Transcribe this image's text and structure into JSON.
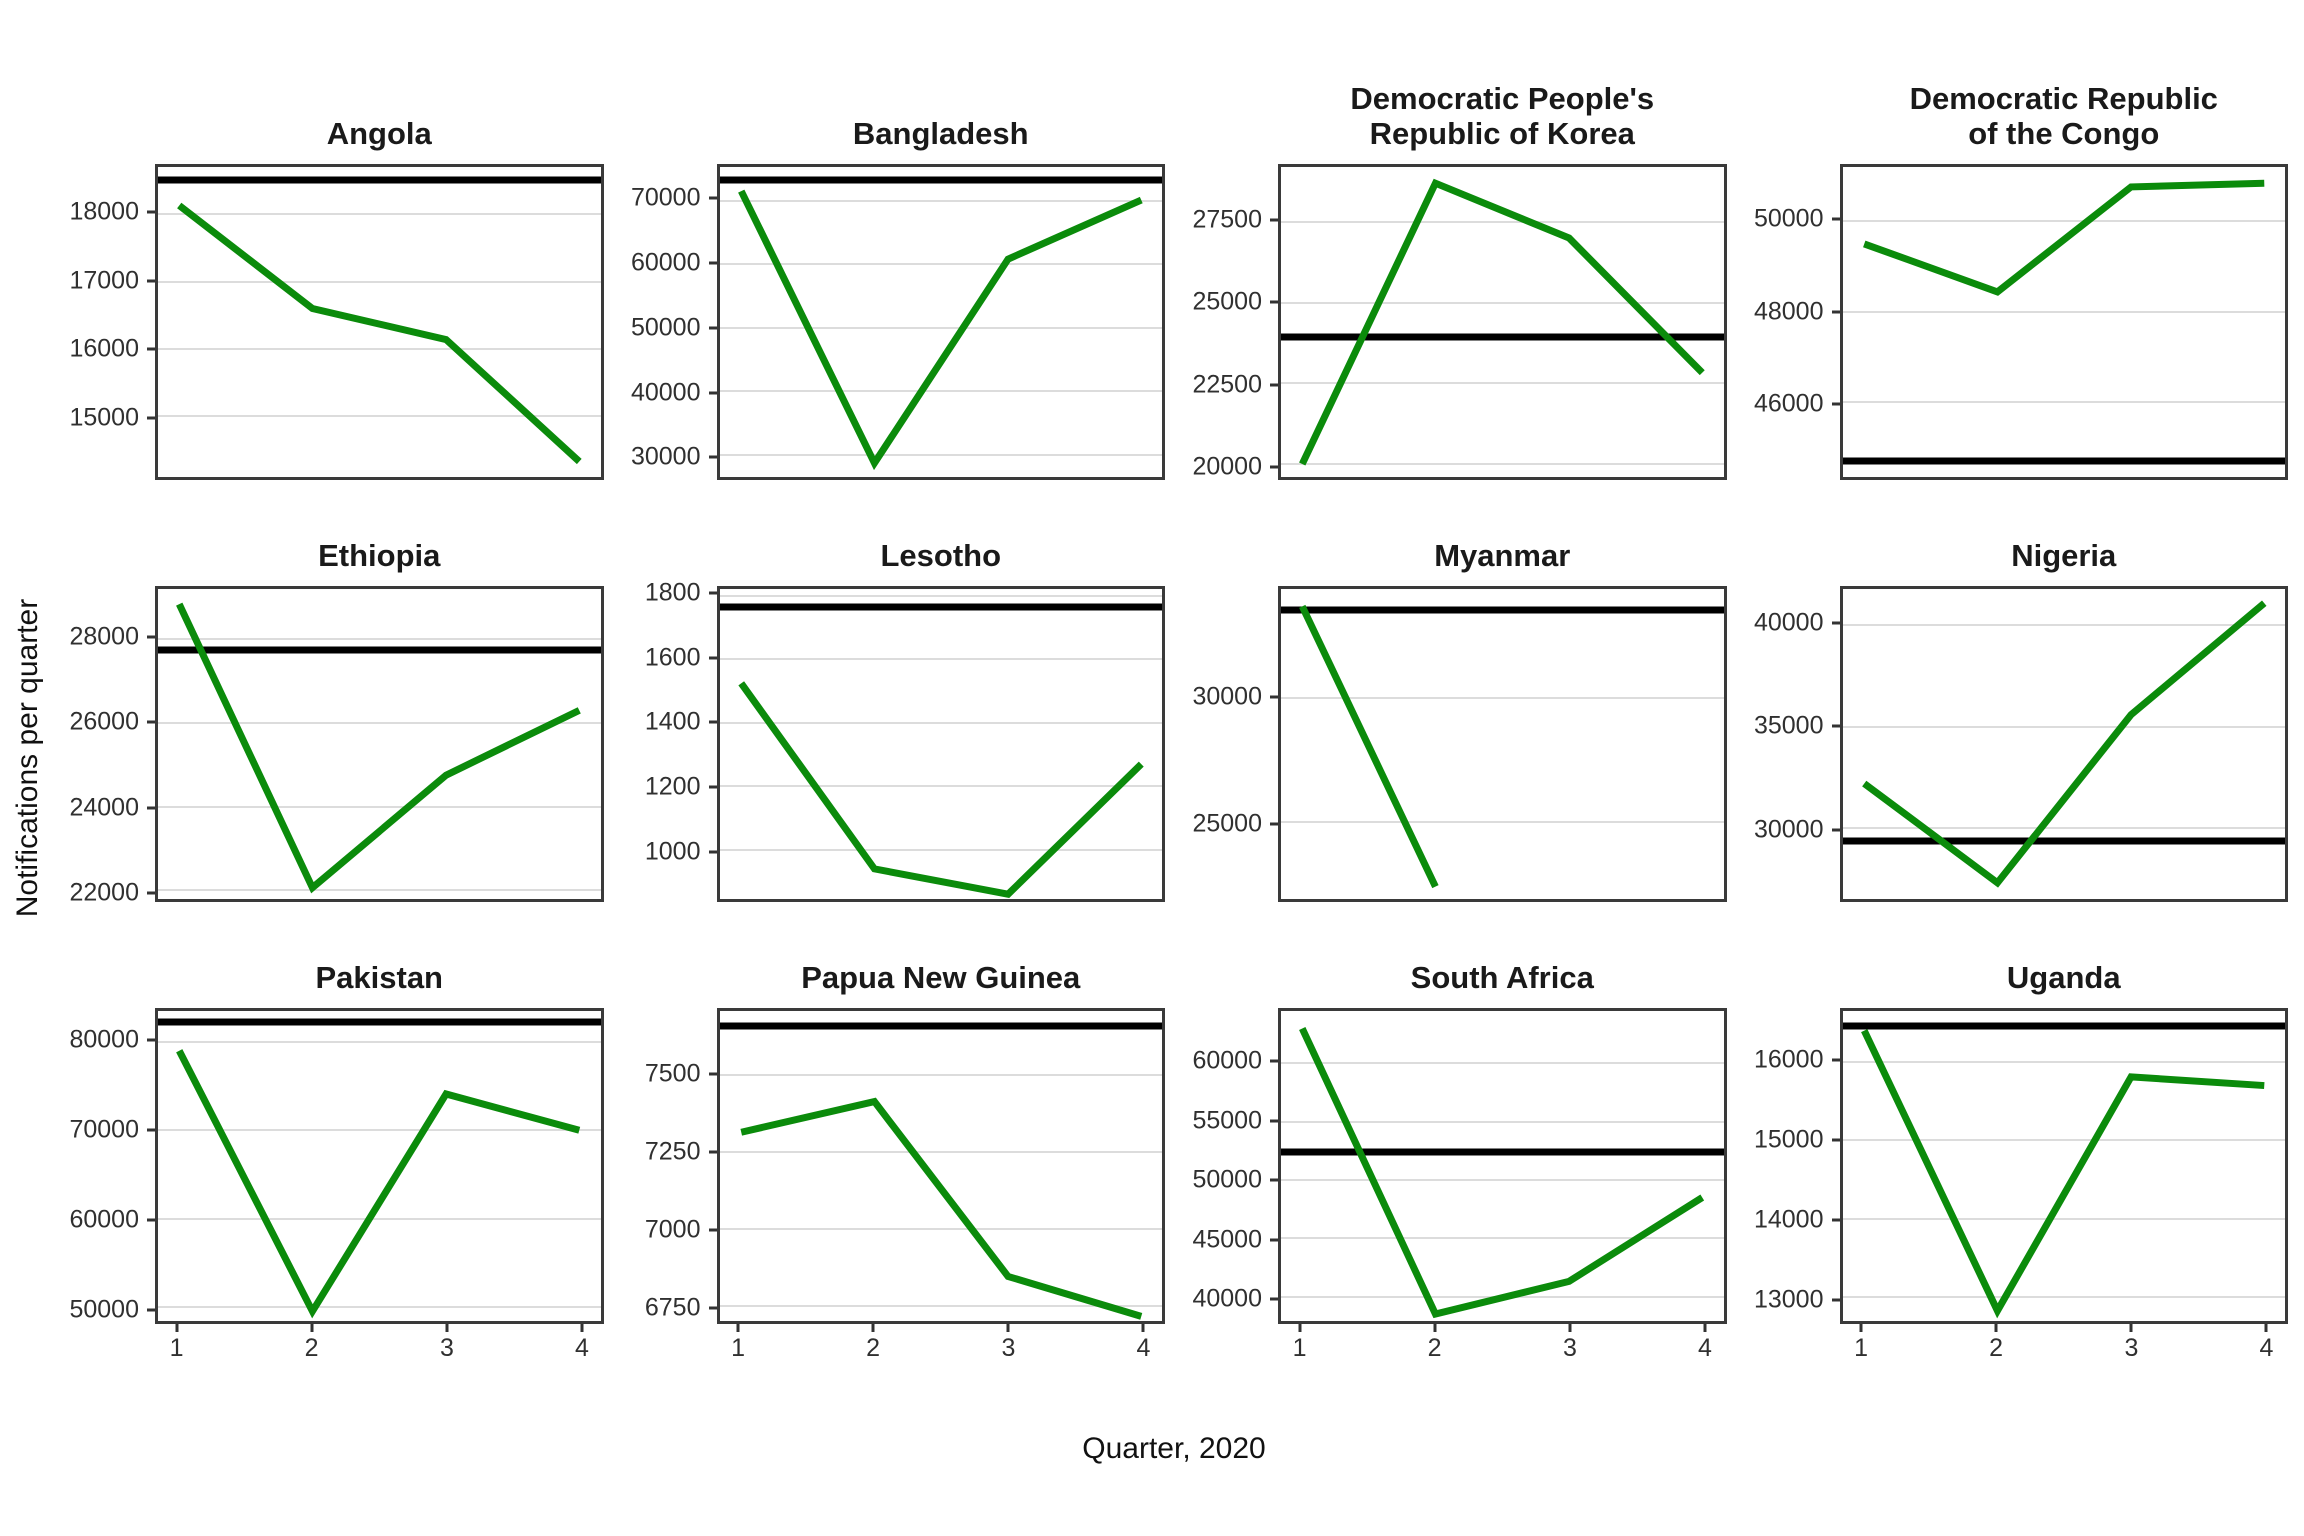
{
  "figure": {
    "x_axis_label": "Quarter, 2020",
    "y_axis_label": "Notifications per quarter"
  },
  "chart_data": {
    "type": "line",
    "title": "",
    "x_label": "Quarter, 2020",
    "y_label": "Notifications per quarter",
    "x": [
      1,
      2,
      3,
      4
    ],
    "x_ticks": [
      "1",
      "2",
      "3",
      "4"
    ],
    "line_color": "#0b8b0b",
    "reference_line_color": "#000000",
    "grid": "major-horizontal",
    "legend_position": "none",
    "facets": [
      {
        "title": "Angola",
        "title_lines": [
          "Angola"
        ],
        "values": [
          18130,
          16600,
          16140,
          14330
        ],
        "reference_line": 18500,
        "y_ticks": [
          15000,
          16000,
          17000,
          18000
        ],
        "ylim": [
          14100,
          18700
        ]
      },
      {
        "title": "Bangladesh",
        "title_lines": [
          "Bangladesh"
        ],
        "values": [
          71500,
          28700,
          60800,
          70100
        ],
        "reference_line": 73300,
        "y_ticks": [
          30000,
          40000,
          50000,
          60000,
          70000
        ],
        "ylim": [
          26500,
          75300
        ]
      },
      {
        "title": "Democratic People's Republic of Korea",
        "title_lines": [
          "Democratic People's",
          "Republic of Korea"
        ],
        "values": [
          20000,
          28700,
          27000,
          22830
        ],
        "reference_line": 23950,
        "y_ticks": [
          20000,
          22500,
          25000,
          27500
        ],
        "ylim": [
          19600,
          29200
        ]
      },
      {
        "title": "Democratic Republic of the Congo",
        "title_lines": [
          "Democratic Republic",
          "of the Congo"
        ],
        "values": [
          49500,
          48440,
          50760,
          50840
        ],
        "reference_line": 44700,
        "y_ticks": [
          46000,
          48000,
          50000
        ],
        "ylim": [
          44350,
          51200
        ]
      },
      {
        "title": "Ethiopia",
        "title_lines": [
          "Ethiopia"
        ],
        "values": [
          28840,
          22060,
          24750,
          26300
        ],
        "reference_line": 27730,
        "y_ticks": [
          22000,
          24000,
          26000,
          28000
        ],
        "ylim": [
          21790,
          29200
        ]
      },
      {
        "title": "Lesotho",
        "title_lines": [
          "Lesotho"
        ],
        "values": [
          1525,
          940,
          860,
          1270
        ],
        "reference_line": 1766,
        "y_ticks": [
          1000,
          1200,
          1400,
          1600,
          1800
        ],
        "ylim": [
          845,
          1822
        ]
      },
      {
        "title": "Myanmar",
        "title_lines": [
          "Myanmar"
        ],
        "values": [
          33700,
          22400,
          null,
          null
        ],
        "reference_line": 33570,
        "y_ticks": [
          25000,
          30000
        ],
        "ylim": [
          21900,
          34400
        ]
      },
      {
        "title": "Nigeria",
        "title_lines": [
          "Nigeria"
        ],
        "values": [
          32200,
          27300,
          35600,
          41100
        ],
        "reference_line": 29350,
        "y_ticks": [
          30000,
          35000,
          40000
        ],
        "ylim": [
          26500,
          41800
        ]
      },
      {
        "title": "Pakistan",
        "title_lines": [
          "Pakistan"
        ],
        "values": [
          79000,
          49500,
          74100,
          70000
        ],
        "reference_line": 82250,
        "y_ticks": [
          50000,
          60000,
          70000,
          80000
        ],
        "ylim": [
          48400,
          83500
        ]
      },
      {
        "title": "Papua New Guinea",
        "title_lines": [
          "Papua New Guinea"
        ],
        "values": [
          7315,
          7415,
          6845,
          6715
        ],
        "reference_line": 7660,
        "y_ticks": [
          6750,
          7000,
          7250,
          7500
        ],
        "ylim": [
          6700,
          7710
        ]
      },
      {
        "title": "South Africa",
        "title_lines": [
          "South Africa"
        ],
        "values": [
          63000,
          38500,
          41300,
          48500
        ],
        "reference_line": 52400,
        "y_ticks": [
          40000,
          45000,
          50000,
          55000,
          60000
        ],
        "ylim": [
          37900,
          64500
        ]
      },
      {
        "title": "Uganda",
        "title_lines": [
          "Uganda"
        ],
        "values": [
          16400,
          12830,
          15810,
          15700
        ],
        "reference_line": 16460,
        "y_ticks": [
          13000,
          14000,
          15000,
          16000
        ],
        "ylim": [
          12700,
          16650
        ]
      }
    ]
  }
}
